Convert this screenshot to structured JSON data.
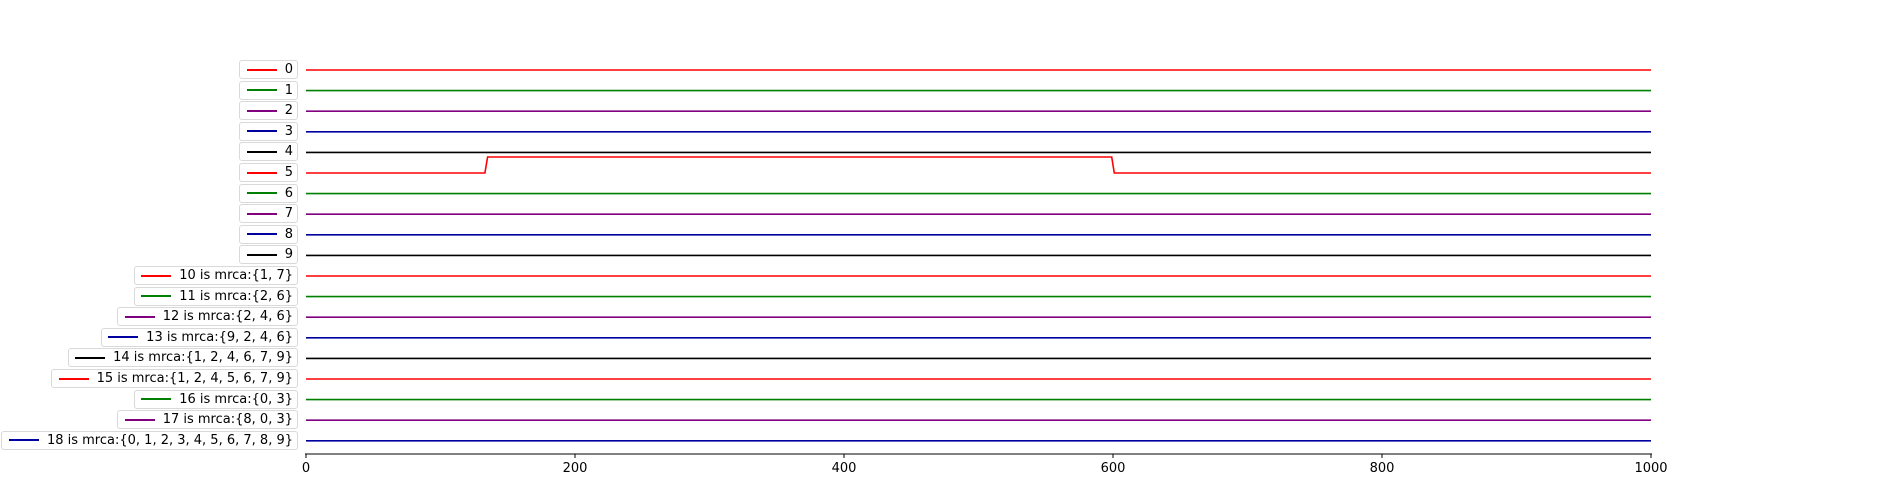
{
  "chart_data": {
    "type": "line",
    "xlim": [
      0,
      1000
    ],
    "x_ticks": [
      0,
      200,
      400,
      600,
      800,
      1000
    ],
    "x_tick_labels": [
      "0",
      "200",
      "400",
      "600",
      "800",
      "1000"
    ],
    "grid": false,
    "legend_placement": "left of each trace",
    "series": [
      {
        "name": "0",
        "color": "#ff0000",
        "x": [
          0,
          1000
        ],
        "y": [
          0,
          0
        ]
      },
      {
        "name": "1",
        "color": "#008000",
        "x": [
          0,
          1000
        ],
        "y": [
          0,
          0
        ]
      },
      {
        "name": "2",
        "color": "#800080",
        "x": [
          0,
          1000
        ],
        "y": [
          0,
          0
        ]
      },
      {
        "name": "3",
        "color": "#0000a0",
        "x": [
          0,
          1000
        ],
        "y": [
          0,
          0
        ]
      },
      {
        "name": "4",
        "color": "#000000",
        "x": [
          0,
          1000
        ],
        "y": [
          0,
          0
        ]
      },
      {
        "name": "5",
        "color": "#ff0000",
        "x": [
          0,
          133,
          135,
          599,
          601,
          1000
        ],
        "y": [
          0,
          0,
          1,
          1,
          0,
          0
        ]
      },
      {
        "name": "6",
        "color": "#008000",
        "x": [
          0,
          1000
        ],
        "y": [
          0,
          0
        ]
      },
      {
        "name": "7",
        "color": "#800080",
        "x": [
          0,
          1000
        ],
        "y": [
          0,
          0
        ]
      },
      {
        "name": "8",
        "color": "#0000a0",
        "x": [
          0,
          1000
        ],
        "y": [
          0,
          0
        ]
      },
      {
        "name": "9",
        "color": "#000000",
        "x": [
          0,
          1000
        ],
        "y": [
          0,
          0
        ]
      },
      {
        "name": "10 is mrca:{1, 7}",
        "color": "#ff0000",
        "x": [
          0,
          1000
        ],
        "y": [
          0,
          0
        ]
      },
      {
        "name": "11 is mrca:{2, 6}",
        "color": "#008000",
        "x": [
          0,
          1000
        ],
        "y": [
          0,
          0
        ]
      },
      {
        "name": "12 is mrca:{2, 4, 6}",
        "color": "#800080",
        "x": [
          0,
          1000
        ],
        "y": [
          0,
          0
        ]
      },
      {
        "name": "13 is mrca:{9, 2, 4, 6}",
        "color": "#0000a0",
        "x": [
          0,
          1000
        ],
        "y": [
          0,
          0
        ]
      },
      {
        "name": "14 is mrca:{1, 2, 4, 6, 7, 9}",
        "color": "#000000",
        "x": [
          0,
          1000
        ],
        "y": [
          0,
          0
        ]
      },
      {
        "name": "15 is mrca:{1, 2, 4, 5, 6, 7, 9}",
        "color": "#ff0000",
        "x": [
          0,
          1000
        ],
        "y": [
          0,
          0
        ]
      },
      {
        "name": "16 is mrca:{0, 3}",
        "color": "#008000",
        "x": [
          0,
          1000
        ],
        "y": [
          0,
          0
        ]
      },
      {
        "name": "17 is mrca:{8, 0, 3}",
        "color": "#800080",
        "x": [
          0,
          1000
        ],
        "y": [
          0,
          0
        ]
      },
      {
        "name": "18 is mrca:{0, 1, 2, 3, 4, 5, 6, 7, 8, 9}",
        "color": "#0000a0",
        "x": [
          0,
          1000
        ],
        "y": [
          0,
          0
        ]
      }
    ]
  }
}
